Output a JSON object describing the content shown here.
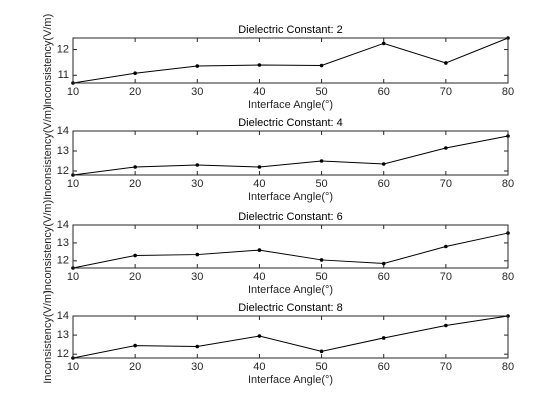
{
  "chart_data": [
    {
      "type": "line",
      "title": "Dielectric Constant: 2",
      "x_label": "Interface Angle(°)",
      "y_label": "Inconsistency(V/m)",
      "color": "#000000",
      "x": [
        10,
        20,
        30,
        40,
        50,
        60,
        70,
        80
      ],
      "values": [
        10.7,
        11.08,
        11.36,
        11.4,
        11.38,
        12.24,
        11.48,
        12.45
      ],
      "xlim": [
        10,
        80
      ],
      "xticks": [
        10,
        20,
        30,
        40,
        50,
        60,
        70,
        80
      ],
      "ylim": [
        10.7,
        12.45
      ],
      "yticks": [
        11,
        12
      ]
    },
    {
      "type": "line",
      "title": "Dielectric Constant: 4",
      "x_label": "Interface Angle(°)",
      "y_label": "Inconsistency(V/m)",
      "color": "#000000",
      "x": [
        10,
        20,
        30,
        40,
        50,
        60,
        70,
        80
      ],
      "values": [
        11.8,
        12.2,
        12.3,
        12.2,
        12.5,
        12.35,
        13.15,
        13.75
      ],
      "xlim": [
        10,
        80
      ],
      "xticks": [
        10,
        20,
        30,
        40,
        50,
        60,
        70,
        80
      ],
      "ylim": [
        11.8,
        14
      ],
      "yticks": [
        12,
        13,
        14
      ]
    },
    {
      "type": "line",
      "title": "Dielectric Constant: 6",
      "x_label": "Interface Angle(°)",
      "y_label": "Inconsistency(V/m)",
      "color": "#000000",
      "x": [
        10,
        20,
        30,
        40,
        50,
        60,
        70,
        80
      ],
      "values": [
        11.6,
        12.3,
        12.35,
        12.6,
        12.05,
        11.85,
        12.8,
        13.55
      ],
      "xlim": [
        10,
        80
      ],
      "xticks": [
        10,
        20,
        30,
        40,
        50,
        60,
        70,
        80
      ],
      "ylim": [
        11.6,
        14
      ],
      "yticks": [
        12,
        13,
        14
      ]
    },
    {
      "type": "line",
      "title": "Dielectric Constant: 8",
      "x_label": "Interface Angle(°)",
      "y_label": "Inconsistency(V/m)",
      "color": "#000000",
      "x": [
        10,
        20,
        30,
        40,
        50,
        60,
        70,
        80
      ],
      "values": [
        11.8,
        12.45,
        12.4,
        12.95,
        12.15,
        12.85,
        13.5,
        14.0
      ],
      "xlim": [
        10,
        80
      ],
      "xticks": [
        10,
        20,
        30,
        40,
        50,
        60,
        70,
        80
      ],
      "ylim": [
        11.8,
        14
      ],
      "yticks": [
        12,
        13,
        14
      ]
    }
  ]
}
